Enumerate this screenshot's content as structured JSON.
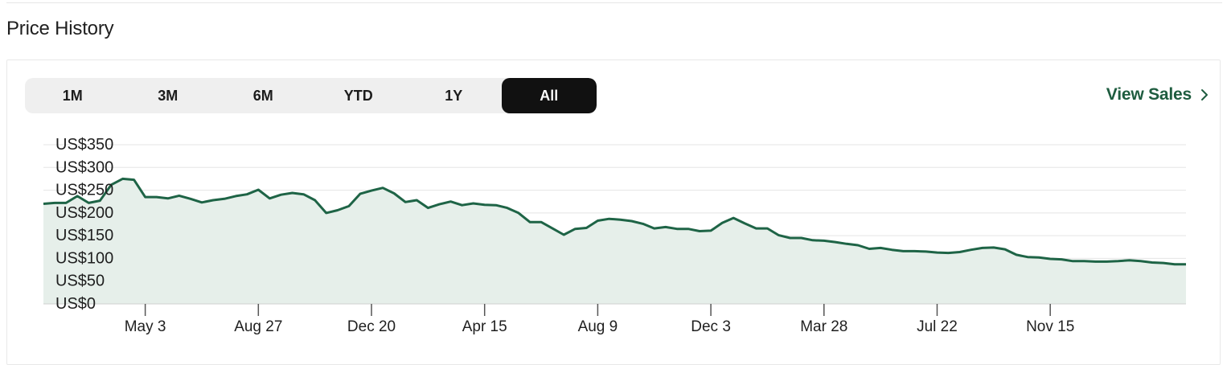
{
  "section": {
    "title": "Price History"
  },
  "range_tabs": [
    {
      "label": "1M",
      "active": false
    },
    {
      "label": "3M",
      "active": false
    },
    {
      "label": "6M",
      "active": false
    },
    {
      "label": "YTD",
      "active": false
    },
    {
      "label": "1Y",
      "active": false
    },
    {
      "label": "All",
      "active": true
    }
  ],
  "view_sales": {
    "label": "View Sales",
    "icon": "chevron-right-icon"
  },
  "colors": {
    "line": "#1e6446",
    "area": "#e6efea",
    "grid": "#e5e5e5",
    "accent": "#1e5c3f",
    "active_tab": "#111111"
  },
  "chart_data": {
    "type": "area",
    "title": "",
    "xlabel": "",
    "ylabel": "",
    "y_tick_labels": [
      "US$0",
      "US$50",
      "US$100",
      "US$150",
      "US$200",
      "US$250",
      "US$300",
      "US$350"
    ],
    "y_ticks": [
      0,
      50,
      100,
      150,
      200,
      250,
      300,
      350
    ],
    "ylim": [
      0,
      350
    ],
    "x_tick_labels": [
      "May 3",
      "Aug 27",
      "Dec 20",
      "Apr 15",
      "Aug 9",
      "Dec 3",
      "Mar 28",
      "Jul 22",
      "Nov 15"
    ],
    "x_tick_index": [
      9,
      19,
      29,
      39,
      49,
      59,
      69,
      79,
      89
    ],
    "grid": true,
    "legend": "none",
    "series": [
      {
        "values": [
          220,
          222,
          222,
          237,
          222,
          227,
          262,
          275,
          273,
          235,
          235,
          232,
          238,
          231,
          223,
          228,
          231,
          237,
          241,
          251,
          232,
          240,
          244,
          241,
          228,
          200,
          206,
          215,
          242,
          249,
          255,
          243,
          224,
          228,
          211,
          219,
          225,
          217,
          221,
          218,
          217,
          211,
          200,
          180,
          180,
          166,
          152,
          165,
          167,
          183,
          187,
          185,
          182,
          176,
          166,
          169,
          165,
          165,
          160,
          161,
          178,
          189,
          177,
          166,
          166,
          151,
          145,
          145,
          140,
          139,
          136,
          132,
          129,
          121,
          123,
          119,
          116,
          116,
          115,
          113,
          112,
          114,
          119,
          123,
          124,
          120,
          108,
          103,
          102,
          99,
          98,
          94,
          94,
          93,
          93,
          94,
          96,
          94,
          91,
          90,
          87,
          87
        ]
      }
    ]
  }
}
